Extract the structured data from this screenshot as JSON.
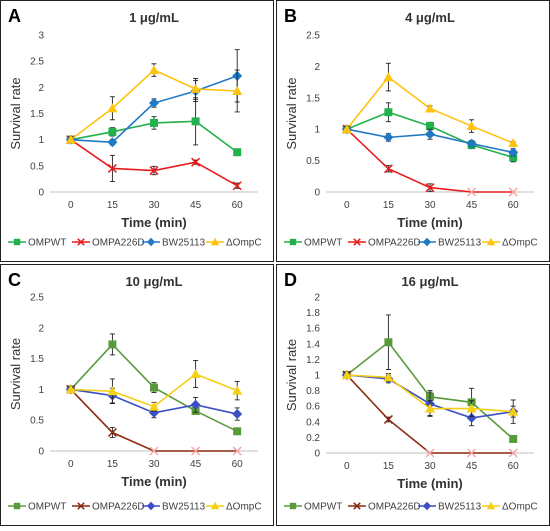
{
  "colors": {
    "OMPWT": "#22b14c",
    "OMPA226D": "#e81c1c",
    "BW25113": "#2178c4",
    "ΔOmpC": "#ffc20e",
    "OMPWT_dark": "#5a9a3c",
    "OMPA226D_dark": "#8b2a0e",
    "BW25113_dark": "#3a4fc4",
    "ΔOmpC_dark": "#f5cf12"
  },
  "chart_data": [
    {
      "type": "line",
      "panel_label": "A",
      "title": "1 μg/mL",
      "xlabel": "Time (min)",
      "ylabel": "Survival rate",
      "x": [
        0,
        15,
        30,
        45,
        60
      ],
      "x_tick_labels": [
        "0",
        "15",
        "30",
        "45",
        "60"
      ],
      "ylim": [
        0,
        3
      ],
      "y_ticks": [
        0,
        0.5,
        1,
        1.5,
        2,
        2.5,
        3
      ],
      "y_tick_labels": [
        "0",
        "0.5",
        "1",
        "1.5",
        "2",
        "2.5",
        "3"
      ],
      "grid": false,
      "legend_position": "bottom",
      "series": [
        {
          "name": "OMPWT",
          "values": [
            1.0,
            1.15,
            1.32,
            1.35,
            0.76
          ],
          "errors": [
            0.05,
            0.08,
            0.12,
            0.45,
            0.06
          ],
          "marker": "square",
          "color_key": "OMPWT"
        },
        {
          "name": "OMPA226D",
          "values": [
            1.0,
            0.45,
            0.41,
            0.57,
            0.12
          ],
          "errors": [
            0.05,
            0.25,
            0.08,
            0.04,
            0.05
          ],
          "marker": "x",
          "color_key": "OMPA226D"
        },
        {
          "name": "BW25113",
          "values": [
            1.0,
            0.95,
            1.7,
            1.93,
            2.22
          ],
          "errors": [
            0.05,
            0.05,
            0.08,
            0.2,
            0.5
          ],
          "marker": "diamond",
          "color_key": "BW25113"
        },
        {
          "name": "ΔOmpC",
          "values": [
            1.0,
            1.6,
            2.33,
            1.97,
            1.93
          ],
          "errors": [
            0.05,
            0.22,
            0.12,
            0.2,
            0.4
          ],
          "marker": "triangle",
          "color_key": "ΔOmpC"
        }
      ]
    },
    {
      "type": "line",
      "panel_label": "B",
      "title": "4 μg/mL",
      "xlabel": "Time (min)",
      "ylabel": "Survival rate",
      "x": [
        0,
        15,
        30,
        45,
        60
      ],
      "x_tick_labels": [
        "0",
        "15",
        "30",
        "45",
        "60"
      ],
      "ylim": [
        0,
        2.5
      ],
      "y_ticks": [
        0,
        0.5,
        1,
        1.5,
        2,
        2.5
      ],
      "y_tick_labels": [
        "0",
        "0.5",
        "1",
        "1.5",
        "2",
        "2.5"
      ],
      "grid": false,
      "legend_position": "bottom",
      "series": [
        {
          "name": "OMPWT",
          "values": [
            1.0,
            1.27,
            1.05,
            0.75,
            0.55
          ],
          "errors": [
            0.04,
            0.15,
            0.06,
            0.06,
            0.07
          ],
          "marker": "square",
          "color_key": "OMPWT"
        },
        {
          "name": "OMPA226D",
          "values": [
            1.0,
            0.37,
            0.07,
            0.0,
            0.0
          ],
          "errors": [
            0.04,
            0.05,
            0.06,
            0.0,
            0.0
          ],
          "marker": "x",
          "color_key": "OMPA226D"
        },
        {
          "name": "BW25113",
          "values": [
            1.0,
            0.87,
            0.92,
            0.77,
            0.63
          ],
          "errors": [
            0.04,
            0.06,
            0.08,
            0.05,
            0.06
          ],
          "marker": "diamond",
          "color_key": "BW25113"
        },
        {
          "name": "ΔOmpC",
          "values": [
            1.0,
            1.83,
            1.33,
            1.05,
            0.78
          ],
          "errors": [
            0.04,
            0.22,
            0.04,
            0.1,
            0.02
          ],
          "marker": "triangle",
          "color_key": "ΔOmpC"
        }
      ]
    },
    {
      "type": "line",
      "panel_label": "C",
      "title": "10 μg/mL",
      "xlabel": "Time (min)",
      "ylabel": "Survival rate",
      "x": [
        0,
        15,
        30,
        45,
        60
      ],
      "x_tick_labels": [
        "0",
        "15",
        "30",
        "45",
        "60"
      ],
      "ylim": [
        0,
        2.5
      ],
      "y_ticks": [
        0,
        0.5,
        1,
        1.5,
        2,
        2.5
      ],
      "y_tick_labels": [
        "0",
        "0.5",
        "1",
        "1.5",
        "2",
        "2.5"
      ],
      "grid": false,
      "legend_position": "bottom",
      "series": [
        {
          "name": "OMPWT",
          "values": [
            1.0,
            1.73,
            1.03,
            0.65,
            0.32
          ],
          "errors": [
            0.03,
            0.17,
            0.08,
            0.05,
            0.03
          ],
          "marker": "square",
          "color_key": "OMPWT_dark"
        },
        {
          "name": "OMPA226D",
          "values": [
            1.0,
            0.3,
            0.0,
            0.0,
            0.0
          ],
          "errors": [
            0.03,
            0.08,
            0.0,
            0.0,
            0.0
          ],
          "marker": "x",
          "color_key": "OMPA226D_dark"
        },
        {
          "name": "BW25113",
          "values": [
            1.0,
            0.9,
            0.62,
            0.75,
            0.6
          ],
          "errors": [
            0.03,
            0.12,
            0.08,
            0.12,
            0.1
          ],
          "marker": "diamond",
          "color_key": "BW25113_dark"
        },
        {
          "name": "ΔOmpC",
          "values": [
            1.0,
            0.97,
            0.72,
            1.25,
            0.98
          ],
          "errors": [
            0.03,
            0.2,
            0.07,
            0.22,
            0.15
          ],
          "marker": "triangle",
          "color_key": "ΔOmpC_dark"
        }
      ]
    },
    {
      "type": "line",
      "panel_label": "D",
      "title": "16 μg/mL",
      "xlabel": "Time (min)",
      "ylabel": "Survival rate",
      "x": [
        0,
        15,
        30,
        45,
        60
      ],
      "x_tick_labels": [
        "0",
        "15",
        "30",
        "45",
        "60"
      ],
      "ylim": [
        0,
        2
      ],
      "y_ticks": [
        0,
        0.2,
        0.4,
        0.6,
        0.8,
        1,
        1.2,
        1.4,
        1.6,
        1.8,
        2
      ],
      "y_tick_labels": [
        "0",
        "0.2",
        "0.4",
        "0.6",
        "0.8",
        "1",
        "1.2",
        "1.4",
        "1.6",
        "1.8",
        "2"
      ],
      "grid": false,
      "legend_position": "bottom",
      "series": [
        {
          "name": "OMPWT",
          "values": [
            1.0,
            1.42,
            0.72,
            0.65,
            0.18
          ],
          "errors": [
            0.03,
            0.35,
            0.08,
            0.18,
            0.03
          ],
          "marker": "square",
          "color_key": "OMPWT_dark"
        },
        {
          "name": "OMPA226D",
          "values": [
            1.0,
            0.43,
            0.0,
            0.0,
            0.0
          ],
          "errors": [
            0.03,
            0.03,
            0.0,
            0.0,
            0.0
          ],
          "marker": "x",
          "color_key": "OMPA226D_dark"
        },
        {
          "name": "BW25113",
          "values": [
            1.0,
            0.95,
            0.63,
            0.45,
            0.53
          ],
          "errors": [
            0.03,
            0.05,
            0.15,
            0.1,
            0.15
          ],
          "marker": "diamond",
          "color_key": "BW25113_dark"
        },
        {
          "name": "ΔOmpC",
          "values": [
            1.0,
            0.97,
            0.57,
            0.57,
            0.53
          ],
          "errors": [
            0.03,
            0.05,
            0.1,
            0.1,
            0.07
          ],
          "marker": "triangle",
          "color_key": "ΔOmpC_dark"
        }
      ]
    }
  ]
}
